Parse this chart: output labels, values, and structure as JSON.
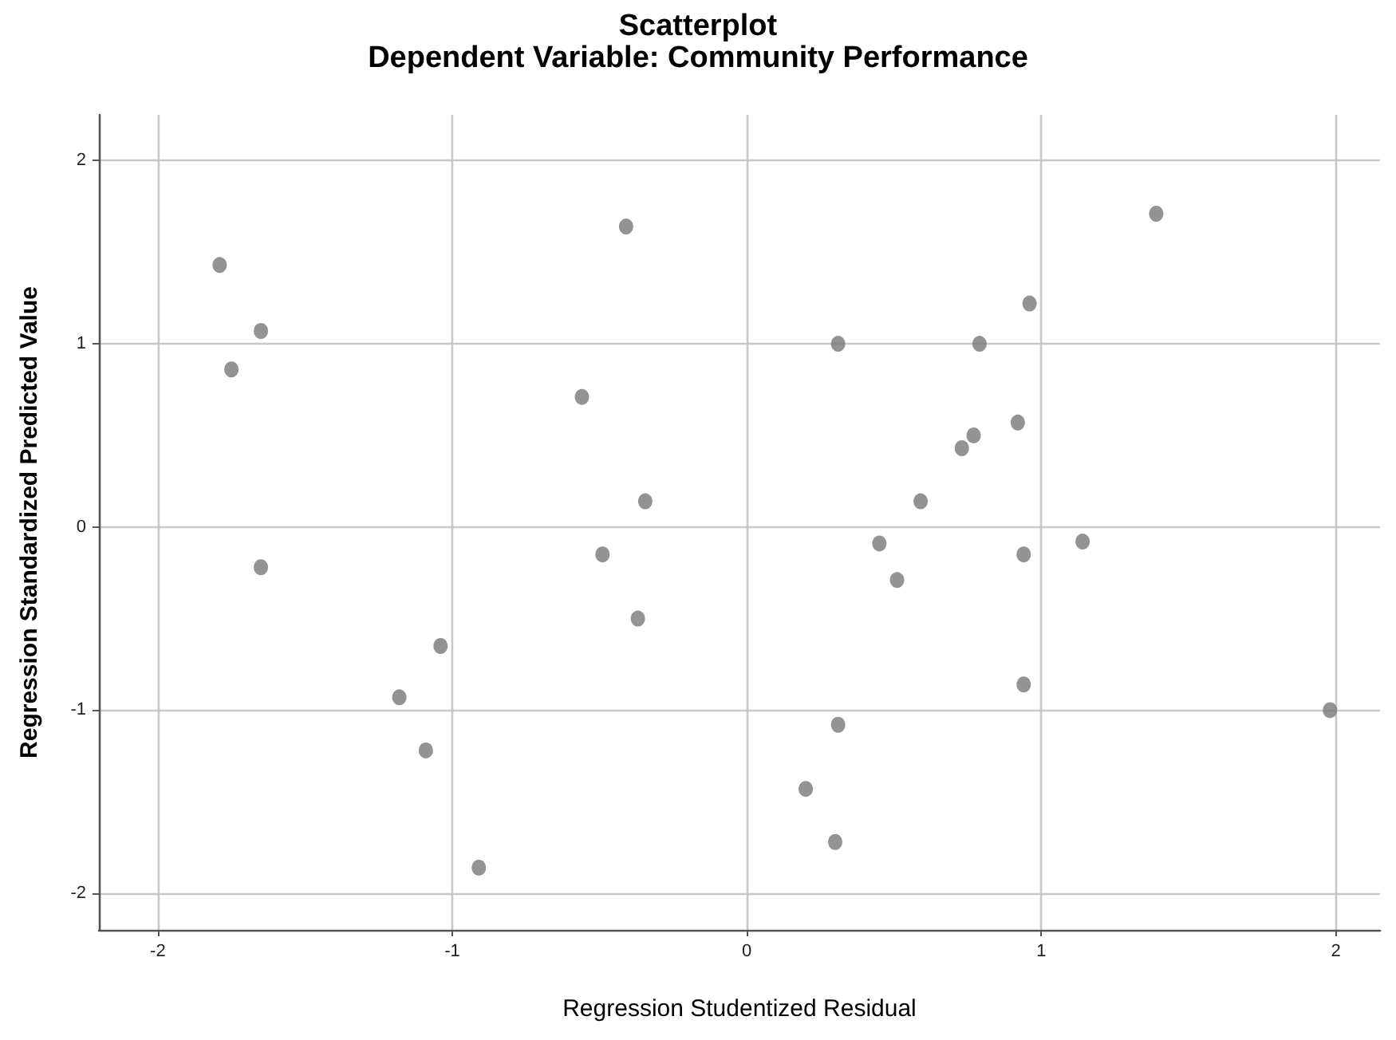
{
  "chart_data": {
    "type": "scatter",
    "title": "Scatterplot",
    "subtitle": "Dependent Variable: Community Performance",
    "xlabel": "Regression Studentized Residual",
    "ylabel": "Regression Standardized Predicted Value",
    "x": [
      -1.79,
      -1.65,
      -1.75,
      -1.65,
      -0.56,
      -0.41,
      -0.345,
      -0.49,
      -0.37,
      -1.04,
      -1.18,
      -1.09,
      -0.91,
      0.31,
      0.3,
      0.31,
      0.2,
      0.45,
      0.51,
      0.59,
      0.73,
      0.77,
      0.79,
      0.96,
      0.92,
      0.94,
      0.94,
      1.14,
      1.39,
      1.98
    ],
    "values": [
      1.43,
      1.07,
      0.86,
      -0.22,
      0.71,
      1.64,
      0.14,
      -0.15,
      -0.5,
      -0.65,
      -0.93,
      -1.22,
      -1.86,
      1.0,
      -1.72,
      -1.08,
      -1.43,
      -0.09,
      -0.29,
      0.14,
      0.43,
      0.5,
      1.0,
      1.22,
      0.57,
      -0.15,
      -0.86,
      -0.08,
      1.71,
      -1.0
    ],
    "color": "#787878",
    "marker": "circle",
    "xlim": [
      -2.2,
      2.15
    ],
    "ylim": [
      -2.2,
      2.25
    ],
    "xticks": [
      -2,
      -1,
      0,
      1,
      2
    ],
    "yticks": [
      -2,
      -1,
      0,
      1,
      2
    ],
    "grid": true
  }
}
